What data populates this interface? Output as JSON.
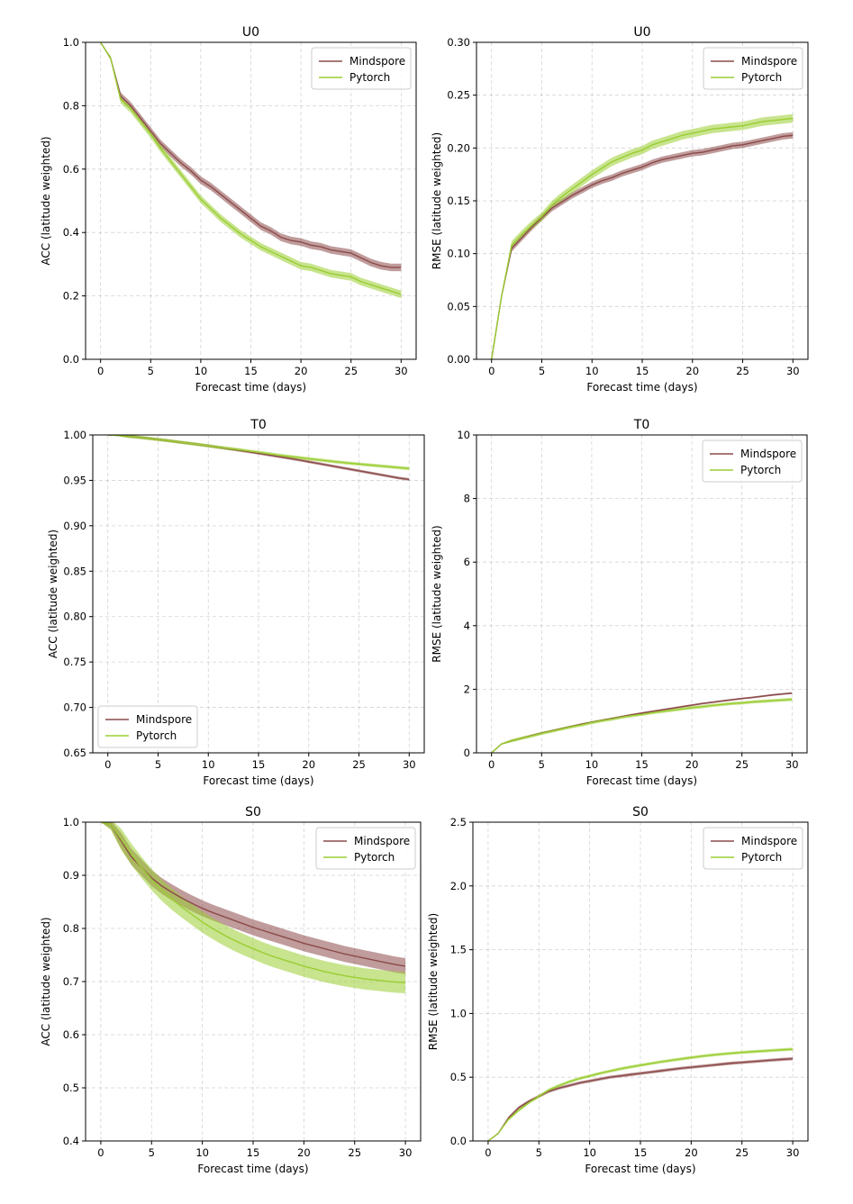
{
  "figure": {
    "colors": {
      "mindspore": "#8c4a4a",
      "pytorch": "#9acd32"
    }
  },
  "chart_data": [
    {
      "type": "line",
      "title": "U0",
      "xlabel": "Forecast time (days)",
      "ylabel": "ACC (latitude weighted)",
      "xlim": [
        -1.5,
        31.5
      ],
      "ylim": [
        0.0,
        1.0
      ],
      "xticks": [
        0,
        5,
        10,
        15,
        20,
        25,
        30
      ],
      "yticks": [
        0.0,
        0.2,
        0.4,
        0.6,
        0.8,
        1.0
      ],
      "tick_decimals": 1,
      "grid": true,
      "legend": "top-right",
      "x": [
        0,
        1,
        2,
        3,
        4,
        5,
        6,
        7,
        8,
        9,
        10,
        11,
        12,
        13,
        14,
        15,
        16,
        17,
        18,
        19,
        20,
        21,
        22,
        23,
        24,
        25,
        26,
        27,
        28,
        29,
        30
      ],
      "series": [
        {
          "name": "Mindspore",
          "color": "#8c4a4a",
          "values": [
            1.0,
            0.95,
            0.83,
            0.8,
            0.76,
            0.72,
            0.68,
            0.65,
            0.62,
            0.595,
            0.565,
            0.545,
            0.52,
            0.495,
            0.47,
            0.445,
            0.42,
            0.405,
            0.385,
            0.375,
            0.37,
            0.36,
            0.355,
            0.345,
            0.34,
            0.335,
            0.32,
            0.305,
            0.295,
            0.29,
            0.29
          ],
          "band": 0.012
        },
        {
          "name": "Pytorch",
          "color": "#9acd32",
          "values": [
            1.0,
            0.95,
            0.82,
            0.79,
            0.75,
            0.71,
            0.665,
            0.625,
            0.585,
            0.545,
            0.505,
            0.475,
            0.445,
            0.42,
            0.395,
            0.375,
            0.355,
            0.34,
            0.325,
            0.31,
            0.295,
            0.29,
            0.28,
            0.27,
            0.265,
            0.26,
            0.245,
            0.235,
            0.225,
            0.215,
            0.205
          ],
          "band": 0.012
        }
      ]
    },
    {
      "type": "line",
      "title": "U0",
      "xlabel": "Forecast time (days)",
      "ylabel": "RMSE (latitude weighted)",
      "xlim": [
        -1.5,
        31.5
      ],
      "ylim": [
        0.0,
        0.3
      ],
      "xticks": [
        0,
        5,
        10,
        15,
        20,
        25,
        30
      ],
      "yticks": [
        0.0,
        0.05,
        0.1,
        0.15,
        0.2,
        0.25,
        0.3
      ],
      "tick_decimals": 2,
      "grid": true,
      "legend": "top-right",
      "x": [
        0,
        1,
        2,
        3,
        4,
        5,
        6,
        7,
        8,
        9,
        10,
        11,
        12,
        13,
        14,
        15,
        16,
        17,
        18,
        19,
        20,
        21,
        22,
        23,
        24,
        25,
        26,
        27,
        28,
        29,
        30
      ],
      "series": [
        {
          "name": "Mindspore",
          "color": "#8c4a4a",
          "values": [
            0.0,
            0.06,
            0.105,
            0.115,
            0.125,
            0.134,
            0.143,
            0.149,
            0.155,
            0.16,
            0.165,
            0.169,
            0.172,
            0.176,
            0.179,
            0.182,
            0.186,
            0.189,
            0.191,
            0.193,
            0.195,
            0.196,
            0.198,
            0.2,
            0.202,
            0.203,
            0.205,
            0.207,
            0.209,
            0.211,
            0.212
          ],
          "band": 0.003
        },
        {
          "name": "Pytorch",
          "color": "#9acd32",
          "values": [
            0.0,
            0.06,
            0.108,
            0.118,
            0.127,
            0.135,
            0.146,
            0.154,
            0.161,
            0.168,
            0.175,
            0.181,
            0.187,
            0.191,
            0.195,
            0.198,
            0.203,
            0.206,
            0.209,
            0.212,
            0.214,
            0.216,
            0.218,
            0.219,
            0.22,
            0.221,
            0.223,
            0.225,
            0.226,
            0.227,
            0.228
          ],
          "band": 0.004
        }
      ]
    },
    {
      "type": "line",
      "title": "T0",
      "xlabel": "Forecast time (days)",
      "ylabel": "ACC (latitude weighted)",
      "xlim": [
        -1.5,
        31.5
      ],
      "ylim": [
        0.65,
        1.0
      ],
      "xticks": [
        0,
        5,
        10,
        15,
        20,
        25,
        30
      ],
      "yticks": [
        0.65,
        0.7,
        0.75,
        0.8,
        0.85,
        0.9,
        0.95,
        1.0
      ],
      "tick_decimals": 2,
      "grid": true,
      "legend": "bottom-left",
      "x": [
        0,
        1,
        2,
        3,
        4,
        5,
        6,
        7,
        8,
        9,
        10,
        11,
        12,
        13,
        14,
        15,
        16,
        17,
        18,
        19,
        20,
        21,
        22,
        23,
        24,
        25,
        26,
        27,
        28,
        29,
        30
      ],
      "series": [
        {
          "name": "Mindspore",
          "color": "#8c4a4a",
          "values": [
            1.0,
            0.9995,
            0.9985,
            0.9975,
            0.9963,
            0.995,
            0.9937,
            0.9923,
            0.9909,
            0.9895,
            0.988,
            0.9864,
            0.9848,
            0.9832,
            0.9815,
            0.9798,
            0.978,
            0.9762,
            0.9744,
            0.9725,
            0.9705,
            0.9685,
            0.9665,
            0.9645,
            0.9625,
            0.9605,
            0.9585,
            0.9565,
            0.9545,
            0.9525,
            0.951
          ],
          "band": 0.0015
        },
        {
          "name": "Pytorch",
          "color": "#9acd32",
          "values": [
            1.0,
            0.9995,
            0.9985,
            0.9975,
            0.9963,
            0.995,
            0.9937,
            0.9923,
            0.9909,
            0.9895,
            0.988,
            0.9866,
            0.9852,
            0.9838,
            0.9823,
            0.9808,
            0.9793,
            0.9778,
            0.9764,
            0.9751,
            0.9738,
            0.9725,
            0.9713,
            0.9701,
            0.969,
            0.968,
            0.967,
            0.966,
            0.965,
            0.964,
            0.963
          ],
          "band": 0.0018
        }
      ]
    },
    {
      "type": "line",
      "title": "T0",
      "xlabel": "Forecast time (days)",
      "ylabel": "RMSE (latitude weighted)",
      "xlim": [
        -1.5,
        31.5
      ],
      "ylim": [
        0,
        10
      ],
      "xticks": [
        0,
        5,
        10,
        15,
        20,
        25,
        30
      ],
      "yticks": [
        0,
        2,
        4,
        6,
        8,
        10
      ],
      "tick_decimals": 0,
      "grid": true,
      "legend": "top-right",
      "x": [
        0,
        1,
        2,
        3,
        4,
        5,
        6,
        7,
        8,
        9,
        10,
        11,
        12,
        13,
        14,
        15,
        16,
        17,
        18,
        19,
        20,
        21,
        22,
        23,
        24,
        25,
        26,
        27,
        28,
        29,
        30
      ],
      "series": [
        {
          "name": "Mindspore",
          "color": "#8c4a4a",
          "values": [
            0.0,
            0.28,
            0.38,
            0.46,
            0.54,
            0.62,
            0.69,
            0.76,
            0.83,
            0.9,
            0.96,
            1.02,
            1.08,
            1.14,
            1.2,
            1.25,
            1.3,
            1.35,
            1.4,
            1.45,
            1.5,
            1.55,
            1.59,
            1.63,
            1.67,
            1.71,
            1.74,
            1.78,
            1.82,
            1.85,
            1.88
          ],
          "band": 0.03
        },
        {
          "name": "Pytorch",
          "color": "#9acd32",
          "values": [
            0.0,
            0.28,
            0.38,
            0.46,
            0.53,
            0.61,
            0.68,
            0.75,
            0.82,
            0.88,
            0.95,
            1.01,
            1.06,
            1.12,
            1.17,
            1.21,
            1.26,
            1.3,
            1.34,
            1.38,
            1.42,
            1.45,
            1.49,
            1.52,
            1.55,
            1.57,
            1.6,
            1.62,
            1.64,
            1.66,
            1.68
          ],
          "band": 0.05
        }
      ]
    },
    {
      "type": "line",
      "title": "S0",
      "xlabel": "Forecast time (days)",
      "ylabel": "ACC (latitude weighted)",
      "xlim": [
        -1.5,
        31.5
      ],
      "ylim": [
        0.4,
        1.0
      ],
      "xticks": [
        0,
        5,
        10,
        15,
        20,
        25,
        30
      ],
      "yticks": [
        0.4,
        0.5,
        0.6,
        0.7,
        0.8,
        0.9,
        1.0
      ],
      "tick_decimals": 1,
      "grid": true,
      "legend": "top-right",
      "x": [
        0,
        1,
        2,
        3,
        4,
        5,
        6,
        7,
        8,
        9,
        10,
        11,
        12,
        13,
        14,
        15,
        16,
        17,
        18,
        19,
        20,
        21,
        22,
        23,
        24,
        25,
        26,
        27,
        28,
        29,
        30
      ],
      "series": [
        {
          "name": "Mindspore",
          "color": "#8c4a4a",
          "values": [
            1.0,
            0.995,
            0.965,
            0.935,
            0.915,
            0.895,
            0.88,
            0.868,
            0.857,
            0.847,
            0.838,
            0.83,
            0.823,
            0.816,
            0.809,
            0.802,
            0.796,
            0.79,
            0.784,
            0.778,
            0.772,
            0.767,
            0.762,
            0.757,
            0.752,
            0.748,
            0.744,
            0.74,
            0.736,
            0.732,
            0.729
          ],
          "band": 0.015
        },
        {
          "name": "Pytorch",
          "color": "#9acd32",
          "values": [
            1.0,
            0.995,
            0.968,
            0.94,
            0.915,
            0.892,
            0.872,
            0.855,
            0.84,
            0.826,
            0.812,
            0.8,
            0.789,
            0.779,
            0.77,
            0.762,
            0.754,
            0.747,
            0.741,
            0.735,
            0.729,
            0.724,
            0.719,
            0.715,
            0.711,
            0.708,
            0.705,
            0.703,
            0.701,
            0.699,
            0.698
          ],
          "band": 0.02
        }
      ]
    },
    {
      "type": "line",
      "title": "S0",
      "xlabel": "Forecast time (days)",
      "ylabel": "RMSE (latitude weighted)",
      "xlim": [
        -1.5,
        31.5
      ],
      "ylim": [
        0.0,
        2.5
      ],
      "xticks": [
        0,
        5,
        10,
        15,
        20,
        25,
        30
      ],
      "yticks": [
        0.0,
        0.5,
        1.0,
        1.5,
        2.0,
        2.5
      ],
      "tick_decimals": 1,
      "grid": true,
      "legend": "top-right",
      "x": [
        0,
        1,
        2,
        3,
        4,
        5,
        6,
        7,
        8,
        9,
        10,
        11,
        12,
        13,
        14,
        15,
        16,
        17,
        18,
        19,
        20,
        21,
        22,
        23,
        24,
        25,
        26,
        27,
        28,
        29,
        30
      ],
      "series": [
        {
          "name": "Mindspore",
          "color": "#8c4a4a",
          "values": [
            0.0,
            0.06,
            0.18,
            0.26,
            0.31,
            0.35,
            0.39,
            0.415,
            0.435,
            0.455,
            0.47,
            0.485,
            0.5,
            0.51,
            0.52,
            0.53,
            0.54,
            0.55,
            0.56,
            0.57,
            0.578,
            0.586,
            0.594,
            0.602,
            0.61,
            0.616,
            0.622,
            0.628,
            0.634,
            0.64,
            0.645
          ],
          "band": 0.012
        },
        {
          "name": "Pytorch",
          "color": "#9acd32",
          "values": [
            0.0,
            0.06,
            0.17,
            0.24,
            0.3,
            0.35,
            0.4,
            0.435,
            0.465,
            0.49,
            0.51,
            0.53,
            0.548,
            0.565,
            0.58,
            0.594,
            0.607,
            0.62,
            0.632,
            0.643,
            0.654,
            0.664,
            0.673,
            0.681,
            0.688,
            0.694,
            0.7,
            0.705,
            0.71,
            0.715,
            0.72
          ],
          "band": 0.012
        }
      ]
    }
  ]
}
